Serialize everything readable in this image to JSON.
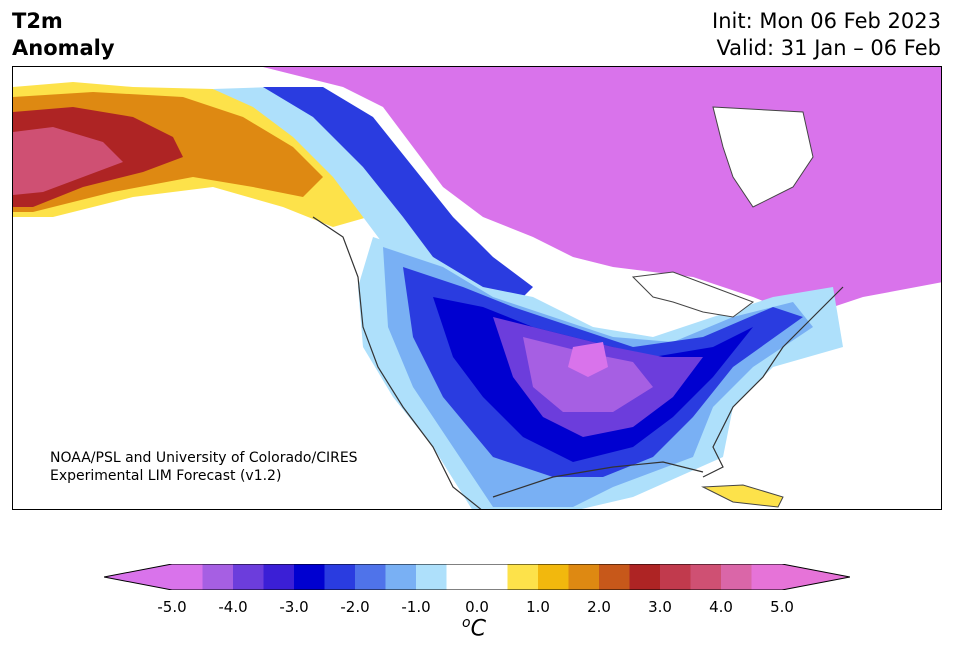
{
  "title": {
    "left_line1": "T2m",
    "left_line2": "Anomaly",
    "init": "Init: Mon 06 Feb 2023",
    "valid": "Valid: 31 Jan – 06 Feb"
  },
  "credit": {
    "line1": "NOAA/PSL and University of Colorado/CIRES",
    "line2": "Experimental LIM Forecast (v1.2)"
  },
  "colorbar": {
    "unit_base": "C",
    "unit_sup": "o",
    "tick_labels": [
      "-5.0",
      "-4.0",
      "-3.0",
      "-2.0",
      "-1.0",
      "0.0",
      "1.0",
      "2.0",
      "3.0",
      "4.0",
      "5.0"
    ],
    "colors": [
      "#d973eb",
      "#a65fe3",
      "#6c3ddc",
      "#3b1fd6",
      "#0000d0",
      "#2a3ce0",
      "#4f73ea",
      "#79b0f4",
      "#aee0fb",
      "#ffffff",
      "#ffffff",
      "#fde24a",
      "#f2b80d",
      "#de8912",
      "#c7581a",
      "#ae2424",
      "#c13a4d",
      "#cf5073",
      "#da66a8",
      "#e673d8"
    ],
    "overflow_low": "#d973eb",
    "overflow_high": "#e673d8"
  }
}
